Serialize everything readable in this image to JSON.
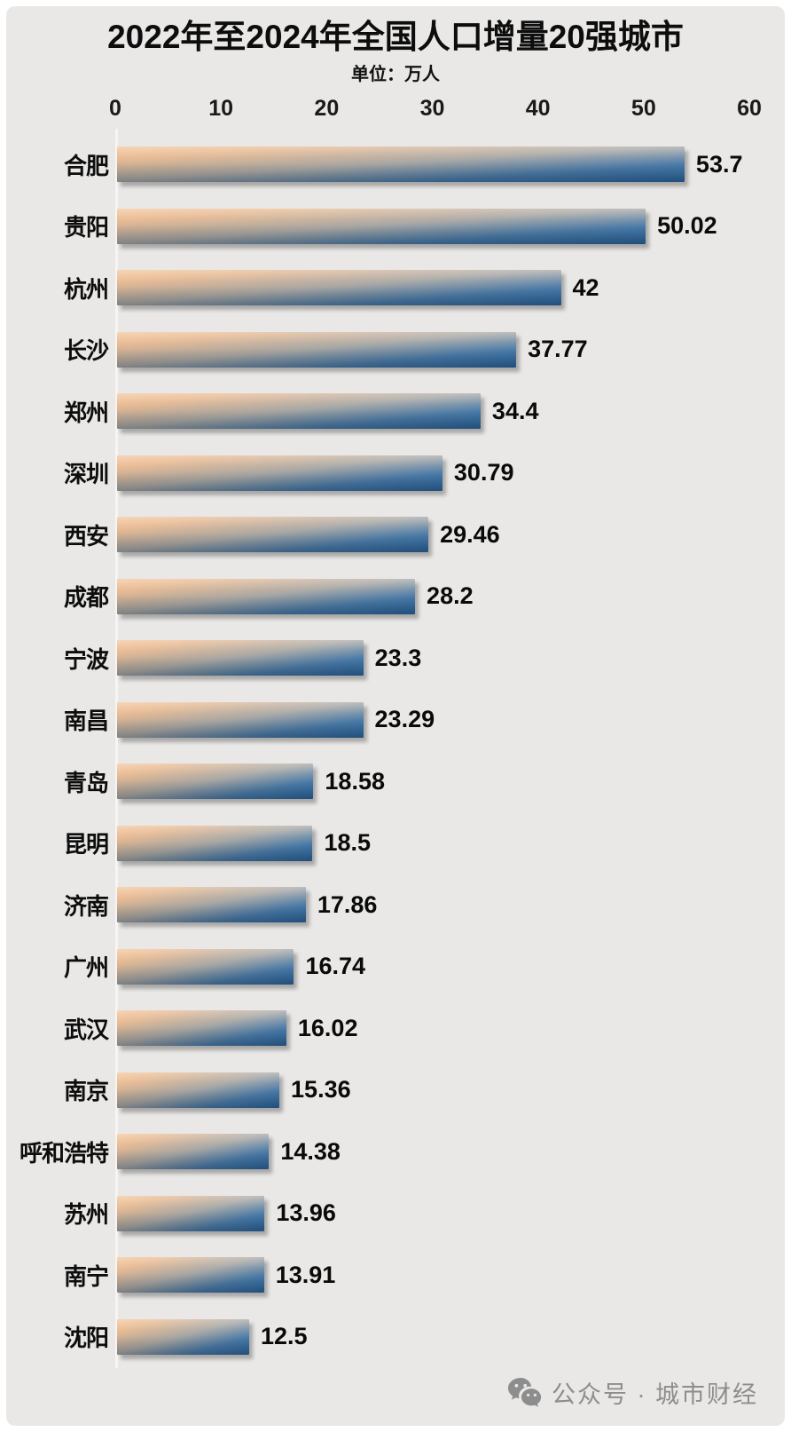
{
  "title": "2022年至2024年全国人口增量20强城市",
  "subtitle": "单位：万人",
  "chart_data": {
    "type": "bar",
    "orientation": "horizontal",
    "title": "2022年至2024年全国人口增量20强城市",
    "unit_label": "单位：万人",
    "xlim": [
      0,
      60
    ],
    "x_ticks": [
      "0",
      "10",
      "20",
      "30",
      "40",
      "50",
      "60"
    ],
    "grid": false,
    "legend": "none",
    "categories": [
      "合肥",
      "贵阳",
      "杭州",
      "长沙",
      "郑州",
      "深圳",
      "西安",
      "成都",
      "宁波",
      "南昌",
      "青岛",
      "昆明",
      "济南",
      "广州",
      "武汉",
      "南京",
      "呼和浩特",
      "苏州",
      "南宁",
      "沈阳"
    ],
    "values": [
      53.7,
      50.02,
      42,
      37.77,
      34.4,
      30.79,
      29.46,
      28.2,
      23.3,
      23.29,
      18.58,
      18.5,
      17.86,
      16.74,
      16.02,
      15.36,
      14.38,
      13.96,
      13.91,
      12.5
    ],
    "value_labels": [
      "53.7",
      "50.02",
      "42",
      "37.77",
      "34.4",
      "30.79",
      "29.46",
      "28.2",
      "23.3",
      "23.29",
      "18.58",
      "18.5",
      "17.86",
      "16.74",
      "16.02",
      "15.36",
      "14.38",
      "13.96",
      "13.91",
      "12.5"
    ],
    "colors": {
      "bar_gradient_start": "#f2c59a",
      "bar_gradient_mid": "#a8a7a4",
      "bar_gradient_end": "#2a659e",
      "background": "#e9e8e6",
      "axis_line": "#f6f5f2",
      "text": "#0d0d0d"
    }
  },
  "footer": {
    "watermark_icon": "wechat-icon",
    "watermark": "公众号 · 城市财经",
    "color": "#8d8d8d"
  }
}
